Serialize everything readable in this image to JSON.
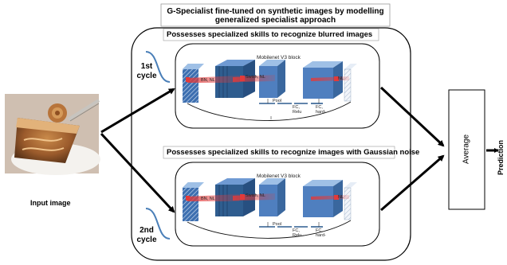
{
  "header": {
    "title_line1": "G-Specialist fine-tuned on synthetic images by modelling",
    "title_line2": "generalized specialist approach"
  },
  "specialists": [
    {
      "skill": "Possesses specialized skills to recognize blurred images",
      "cycle_line1": "1st",
      "cycle_line2": "cycle",
      "block_title": "Mobilenet V3 block",
      "labels": {
        "conv1": "BN, NL",
        "conv2": "BN, NL",
        "conv3": "Swish, NL",
        "conv4": "NL",
        "pool": "Pool",
        "fc1a": "FC,",
        "fc1b": "Relu",
        "fc2a": "FC,",
        "fc2b": "hard-"
      }
    },
    {
      "skill": "Possesses specialized skills to recognize  images with Gaussian noise",
      "cycle_line1": "2nd",
      "cycle_line2": "cycle",
      "block_title": "Mobilenet V3 block",
      "labels": {
        "conv1": "BN, NL",
        "conv2": "BN, NL",
        "conv3": "Swish, NL",
        "conv4": "NL",
        "pool": "Pool",
        "fc1a": "FC,",
        "fc1b": "Relu",
        "fc2a": "FC,",
        "fc2b": "hard-"
      }
    }
  ],
  "input": {
    "label": "Input image"
  },
  "average": {
    "label": "Average"
  },
  "output": {
    "label": "Prediction"
  },
  "colors": {
    "block_blue": "#4f7fbf",
    "block_dark": "#2f5d8f",
    "block_light": "#8cb0dc",
    "red_beam": "#e23a3a",
    "cycle_curve": "#4a7fb8"
  },
  "icons": {
    "arrow": "arrow-icon",
    "pie": "food-photo"
  }
}
